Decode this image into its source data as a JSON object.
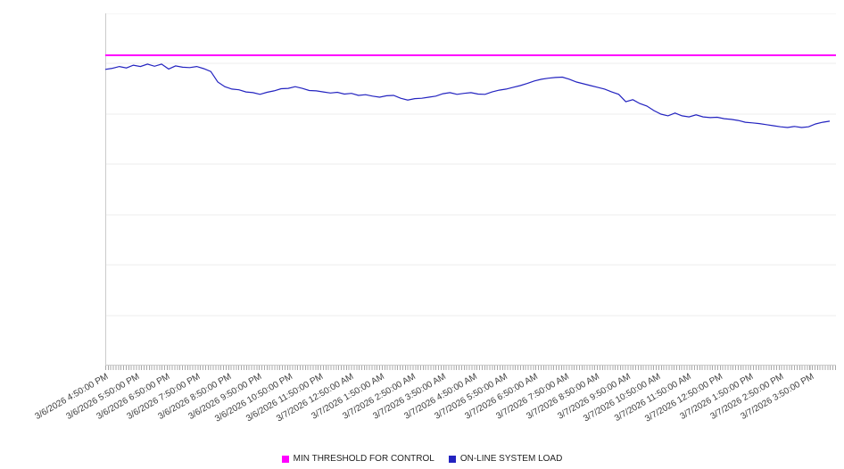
{
  "chart_data": {
    "type": "line",
    "title": "",
    "x_labels": [
      "3/6/2026 4:50:00 PM",
      "3/6/2026 5:50:00 PM",
      "3/6/2026 6:50:00 PM",
      "3/6/2026 7:50:00 PM",
      "3/6/2026 8:50:00 PM",
      "3/6/2026 9:50:00 PM",
      "3/6/2026 10:50:00 PM",
      "3/6/2026 11:50:00 PM",
      "3/7/2026 12:50:00 AM",
      "3/7/2026 1:50:00 AM",
      "3/7/2026 2:50:00 AM",
      "3/7/2026 3:50:00 AM",
      "3/7/2026 4:50:00 AM",
      "3/7/2026 5:50:00 AM",
      "3/7/2026 6:50:00 AM",
      "3/7/2026 7:50:00 AM",
      "3/7/2026 8:50:00 AM",
      "3/7/2026 9:50:00 AM",
      "3/7/2026 10:50:00 AM",
      "3/7/2026 11:50:00 AM",
      "3/7/2026 12:50:00 PM",
      "3/7/2026 1:50:00 PM",
      "3/7/2026 2:50:00 PM",
      "3/7/2026 3:50:00 PM"
    ],
    "ylim": [
      0,
      100
    ],
    "y_axis_labels_visible": false,
    "gridline_values": [
      14.3,
      28.6,
      42.9,
      57.1,
      71.4,
      85.7,
      100
    ],
    "legend_position": "bottom",
    "minor_ticks_per_hour": 12,
    "axis_color": "#cccccc",
    "grid_color": "#ececec",
    "series": [
      {
        "name": "MIN THRESHOLD FOR CONTROL",
        "color": "#ff00ff",
        "kind": "constant",
        "value": 88.1
      },
      {
        "name": "ON-LINE SYSTEM LOAD",
        "color": "#2323c0",
        "kind": "line",
        "values": [
          84.1,
          84.4,
          84.9,
          84.5,
          85.3,
          84.9,
          85.6,
          85.0,
          85.6,
          84.2,
          85.1,
          84.7,
          84.6,
          84.9,
          84.3,
          83.5,
          80.5,
          79.2,
          78.5,
          78.3,
          77.7,
          77.5,
          77.0,
          77.6,
          78.0,
          78.6,
          78.7,
          79.2,
          78.7,
          78.1,
          78.0,
          77.7,
          77.4,
          77.6,
          77.1,
          77.3,
          76.7,
          76.9,
          76.5,
          76.2,
          76.6,
          76.7,
          75.9,
          75.4,
          75.8,
          75.9,
          76.2,
          76.5,
          77.2,
          77.5,
          77.0,
          77.3,
          77.5,
          77.1,
          77.0,
          77.7,
          78.2,
          78.5,
          79.0,
          79.5,
          80.1,
          80.8,
          81.3,
          81.6,
          81.8,
          81.9,
          81.3,
          80.5,
          80.0,
          79.5,
          79.0,
          78.5,
          77.7,
          77.0,
          74.9,
          75.5,
          74.4,
          73.7,
          72.4,
          71.4,
          70.9,
          71.7,
          70.9,
          70.6,
          71.2,
          70.6,
          70.4,
          70.5,
          70.1,
          69.9,
          69.6,
          69.1,
          68.9,
          68.7,
          68.4,
          68.1,
          67.8,
          67.6,
          67.9,
          67.6,
          67.8,
          68.6,
          69.1,
          69.4
        ]
      }
    ]
  }
}
